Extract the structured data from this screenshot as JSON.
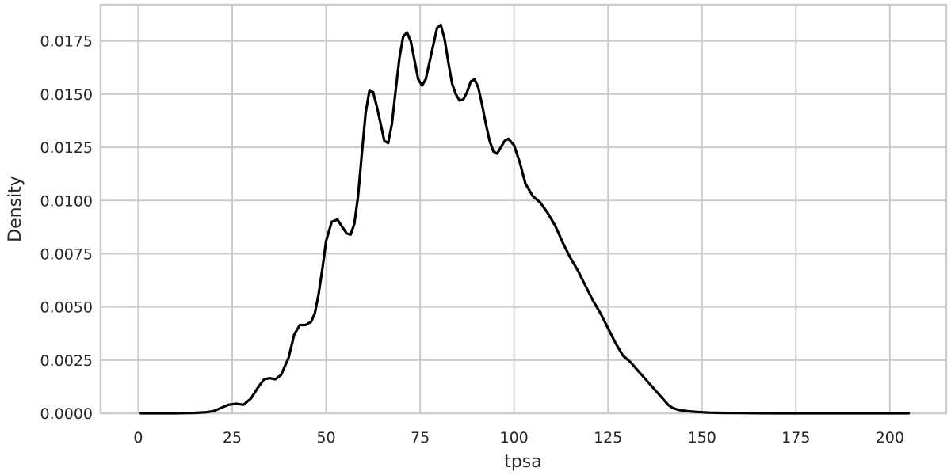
{
  "chart_data": {
    "type": "line",
    "title": "",
    "xlabel": "tpsa",
    "ylabel": "Density",
    "xlim": [
      -10,
      215
    ],
    "ylim": [
      0,
      0.0192
    ],
    "grid": true,
    "line_color": "#000000",
    "x_ticks": [
      0,
      25,
      50,
      75,
      100,
      125,
      150,
      175,
      200
    ],
    "x_tick_labels": [
      "0",
      "25",
      "50",
      "75",
      "100",
      "125",
      "150",
      "175",
      "200"
    ],
    "y_ticks": [
      0,
      0.0025,
      0.005,
      0.0075,
      0.01,
      0.0125,
      0.015,
      0.0175
    ],
    "y_tick_labels": [
      "0.0000",
      "0.0025",
      "0.0050",
      "0.0075",
      "0.0100",
      "0.0125",
      "0.0150",
      "0.0175"
    ],
    "series": [
      {
        "x": [
          0.7,
          10,
          15,
          18,
          20,
          22,
          24,
          26,
          28,
          30,
          32,
          33.5,
          35,
          36.5,
          38,
          40,
          41.5,
          43,
          44.5,
          46,
          47,
          48,
          49,
          50,
          51.5,
          53,
          54.5,
          55.5,
          56.5,
          57.5,
          58.5,
          59.5,
          60.5,
          61.5,
          62.5,
          63.5,
          64.5,
          65.5,
          66.5,
          67.5,
          68.5,
          69.5,
          70.5,
          71.5,
          72.5,
          73.5,
          74.5,
          75.5,
          76.5,
          77.5,
          78.5,
          79.5,
          80.5,
          81.5,
          82.5,
          83.5,
          84.5,
          85.5,
          86.5,
          87.5,
          88.5,
          89.5,
          90.5,
          91.5,
          92.5,
          93.5,
          94.5,
          95.5,
          96.5,
          97.5,
          98.5,
          100,
          101.5,
          103,
          105,
          107,
          109,
          111,
          113,
          115,
          117,
          119,
          121,
          123,
          125,
          127,
          129,
          131,
          133,
          135,
          137,
          139,
          141,
          142,
          143,
          144,
          146,
          148,
          150,
          152,
          155,
          160,
          165,
          170,
          180,
          190,
          200,
          205
        ],
        "y": [
          0.0,
          0.0,
          2e-05,
          5e-05,
          0.0001,
          0.00025,
          0.0004,
          0.00045,
          0.0004,
          0.0007,
          0.00125,
          0.0016,
          0.00165,
          0.0016,
          0.0018,
          0.0026,
          0.0037,
          0.00415,
          0.00415,
          0.0043,
          0.0047,
          0.0056,
          0.0068,
          0.0081,
          0.009,
          0.0091,
          0.0087,
          0.00845,
          0.0084,
          0.0089,
          0.0102,
          0.0122,
          0.0141,
          0.01515,
          0.0151,
          0.0144,
          0.0136,
          0.0128,
          0.0127,
          0.0136,
          0.0152,
          0.0167,
          0.0177,
          0.0179,
          0.0175,
          0.0166,
          0.0157,
          0.0154,
          0.0157,
          0.0165,
          0.0173,
          0.0181,
          0.01825,
          0.0176,
          0.0165,
          0.0155,
          0.015,
          0.0147,
          0.01475,
          0.0151,
          0.0156,
          0.0157,
          0.0153,
          0.0145,
          0.0136,
          0.0128,
          0.0123,
          0.0122,
          0.0125,
          0.0128,
          0.0129,
          0.0126,
          0.0118,
          0.0108,
          0.0102,
          0.0099,
          0.0094,
          0.0088,
          0.008,
          0.0073,
          0.0067,
          0.006,
          0.0053,
          0.0047,
          0.004,
          0.0033,
          0.0027,
          0.0024,
          0.002,
          0.0016,
          0.0012,
          0.0008,
          0.0004,
          0.00027,
          0.0002,
          0.00015,
          0.0001,
          7e-05,
          5e-05,
          3e-05,
          2e-05,
          1e-05,
          4e-06,
          0.0,
          0.0,
          0.0,
          0.0,
          0.0
        ]
      }
    ]
  }
}
